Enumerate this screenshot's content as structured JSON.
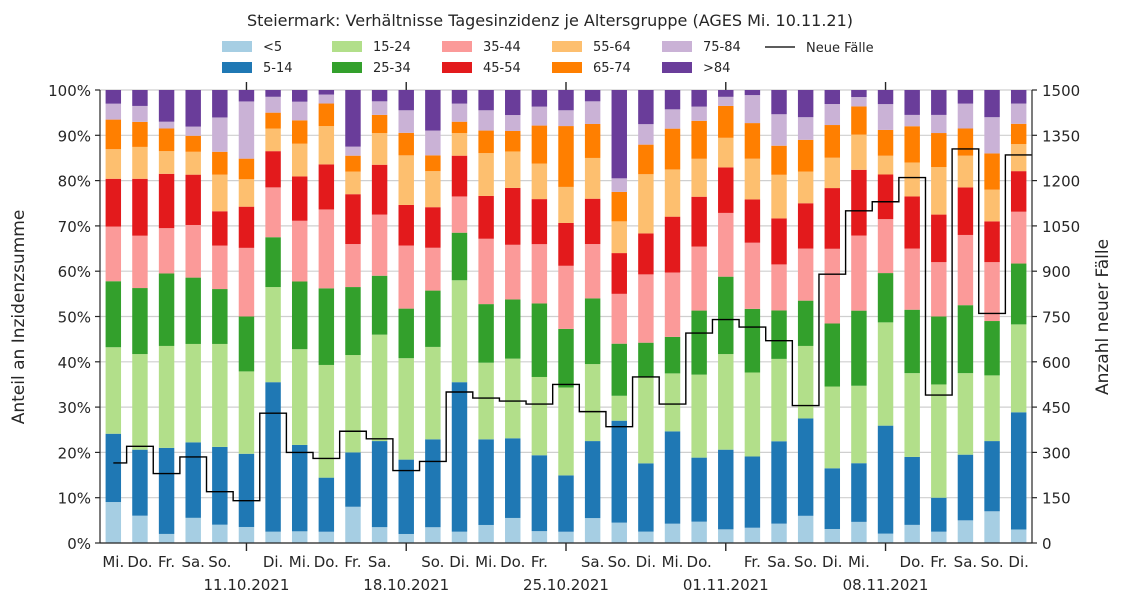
{
  "chart_data": {
    "type": "bar",
    "title": "Steiermark: Verhältnisse Tagesinzidenz je Altersgruppe (AGES Mi. 10.11.21)",
    "ylabel_left": "Anteil an Inzidenzsumme",
    "ylabel_right": "Anzahl neuer Fälle",
    "ylim_left": [
      0,
      100
    ],
    "ylim_right": [
      0,
      1500
    ],
    "yticks_left": [
      "0%",
      "10%",
      "20%",
      "30%",
      "40%",
      "50%",
      "60%",
      "70%",
      "80%",
      "90%",
      "100%"
    ],
    "yticks_right": [
      "0",
      "150",
      "300",
      "450",
      "600",
      "750",
      "900",
      "1050",
      "1200",
      "1350",
      "1500"
    ],
    "grid": true,
    "legend_position": "top",
    "x_day_labels": [
      "Mi.",
      "Do.",
      "Fr.",
      "Sa.",
      "So.",
      "Di.",
      "Mi.",
      "Do.",
      "Fr.",
      "Sa.",
      "So.",
      "Di.",
      "Mi.",
      "Do.",
      "Fr.",
      "Sa.",
      "So.",
      "Di.",
      "Mi.",
      "Do.",
      "Fr.",
      "Sa.",
      "So.",
      "Di.",
      "Mi.",
      "Do.",
      "Fr.",
      "Sa.",
      "So.",
      "Di."
    ],
    "x_date_labels": [
      "11.10.2021",
      "18.10.2021",
      "25.10.2021",
      "01.11.2021",
      "08.11.2021"
    ],
    "series": [
      {
        "name": "<5",
        "color": "#a6cee3",
        "values": [
          9,
          6,
          2,
          5.5,
          4,
          3.5,
          2.5,
          2.5,
          2.5,
          8,
          3.5,
          2,
          3.5,
          2.5,
          4,
          5.5,
          2.5,
          2.5,
          5.5,
          4.5,
          2.5,
          4.5,
          4.5,
          3,
          3,
          4,
          6,
          3,
          4.5,
          2,
          4,
          2.5,
          5,
          7,
          3
        ]
      },
      {
        "name": "5-14",
        "color": "#1f78b4",
        "values": [
          15,
          14.5,
          19,
          16.5,
          17,
          16,
          33,
          18.5,
          12,
          12,
          19,
          16.5,
          19.5,
          33,
          19,
          17.5,
          16,
          12.5,
          17,
          22.5,
          15,
          21.5,
          13.5,
          17.5,
          14,
          17,
          21.5,
          13,
          12.5,
          23,
          15,
          7.5,
          14.5,
          15.5,
          26
        ]
      },
      {
        "name": "15-24",
        "color": "#b2df8a",
        "values": [
          19,
          21,
          22.5,
          21.5,
          22.5,
          18,
          21,
          20.5,
          25,
          21.5,
          23.5,
          22.5,
          20.5,
          22.5,
          17,
          17.5,
          16.5,
          19.5,
          17,
          5.5,
          19,
          13.5,
          17.5,
          21,
          16.5,
          17,
          16,
          17.5,
          16.5,
          22,
          18.5,
          25,
          18,
          14.5,
          19.5
        ]
      },
      {
        "name": "25-34",
        "color": "#33a02c",
        "values": [
          14.5,
          14.5,
          16,
          14.5,
          12,
          12,
          11,
          14.5,
          17,
          15,
          13,
          11,
          12.5,
          10.5,
          13,
          13,
          15.5,
          13,
          14.5,
          11.5,
          7.5,
          8.5,
          13.5,
          17,
          12.5,
          10,
          10,
          13.5,
          16,
          10.5,
          14,
          15,
          15,
          12,
          13.5
        ]
      },
      {
        "name": "35-44",
        "color": "#fb9a99",
        "values": [
          12,
          11.5,
          10,
          11.5,
          9.5,
          15,
          11,
          13,
          17.5,
          9.5,
          13.5,
          14,
          9.5,
          8,
          14.5,
          12,
          12.5,
          14,
          12,
          11,
          15,
          15,
          13.5,
          14,
          13,
          9.5,
          11.5,
          16,
          16,
          11.5,
          13.5,
          12,
          15.5,
          13,
          11.5
        ]
      },
      {
        "name": "45-54",
        "color": "#e31a1c",
        "values": [
          10.5,
          12.5,
          12,
          11,
          7.5,
          9,
          8,
          9.5,
          10,
          11,
          11,
          9,
          9,
          9,
          9.5,
          12.5,
          9.5,
          9.5,
          10,
          9,
          9,
          13,
          10.5,
          10,
          8.5,
          9.5,
          10,
          13,
          14,
          9.5,
          11.5,
          10.5,
          10.5,
          9,
          9
        ]
      },
      {
        "name": "55-64",
        "color": "#fdbf6f",
        "values": [
          6.5,
          7,
          5,
          5,
          8,
          6,
          5,
          7,
          8.5,
          5,
          7,
          11,
          8,
          5,
          9.5,
          8,
          7.5,
          8,
          9,
          7,
          13,
          11,
          8,
          6.5,
          8,
          9,
          7,
          6.5,
          7.5,
          4,
          7.5,
          10.5,
          7,
          7,
          6
        ]
      },
      {
        "name": "65-74",
        "color": "#ff7f00",
        "values": [
          6.5,
          5.5,
          5,
          3.5,
          5,
          4.5,
          3.5,
          5,
          5,
          3.5,
          4,
          5,
          3.5,
          2.5,
          5,
          4.5,
          8,
          13.5,
          7.5,
          6.5,
          6.5,
          9.5,
          8,
          7,
          7,
          6,
          7,
          7,
          6,
          5.5,
          8,
          7.5,
          6,
          8,
          4.5
        ]
      },
      {
        "name": "75-84",
        "color": "#cab2d6",
        "values": [
          3.5,
          3.5,
          1.5,
          2,
          7.5,
          12.5,
          3.5,
          4,
          2,
          2,
          3,
          5,
          5.5,
          4,
          4.5,
          3.5,
          4,
          3.5,
          5,
          3,
          4.5,
          4.5,
          3,
          2,
          5.5,
          6.5,
          5,
          4.5,
          2,
          5.5,
          2.5,
          4,
          5.5,
          8,
          4.5
        ]
      },
      {
        "name": ">84",
        "color": "#6a3d9a",
        "values": [
          3,
          3.5,
          7,
          8,
          6,
          2.5,
          1.5,
          2.5,
          1,
          12.5,
          2.5,
          4.5,
          9,
          3,
          4.5,
          5.5,
          3.5,
          4.5,
          2.5,
          19.5,
          7.5,
          4.5,
          3.5,
          1.5,
          1,
          5,
          6,
          3,
          1.5,
          3,
          5.5,
          5.5,
          3,
          6,
          3
        ]
      },
      {
        "name": "Neue Fälle",
        "color": "#000000",
        "values": [
          265,
          320,
          230,
          285,
          170,
          140,
          430,
          300,
          280,
          370,
          345,
          240,
          270,
          500,
          480,
          470,
          460,
          525,
          435,
          385,
          550,
          460,
          695,
          740,
          715,
          670,
          455,
          890,
          1100,
          1130,
          1210,
          490,
          1305,
          760,
          1285
        ]
      }
    ]
  }
}
